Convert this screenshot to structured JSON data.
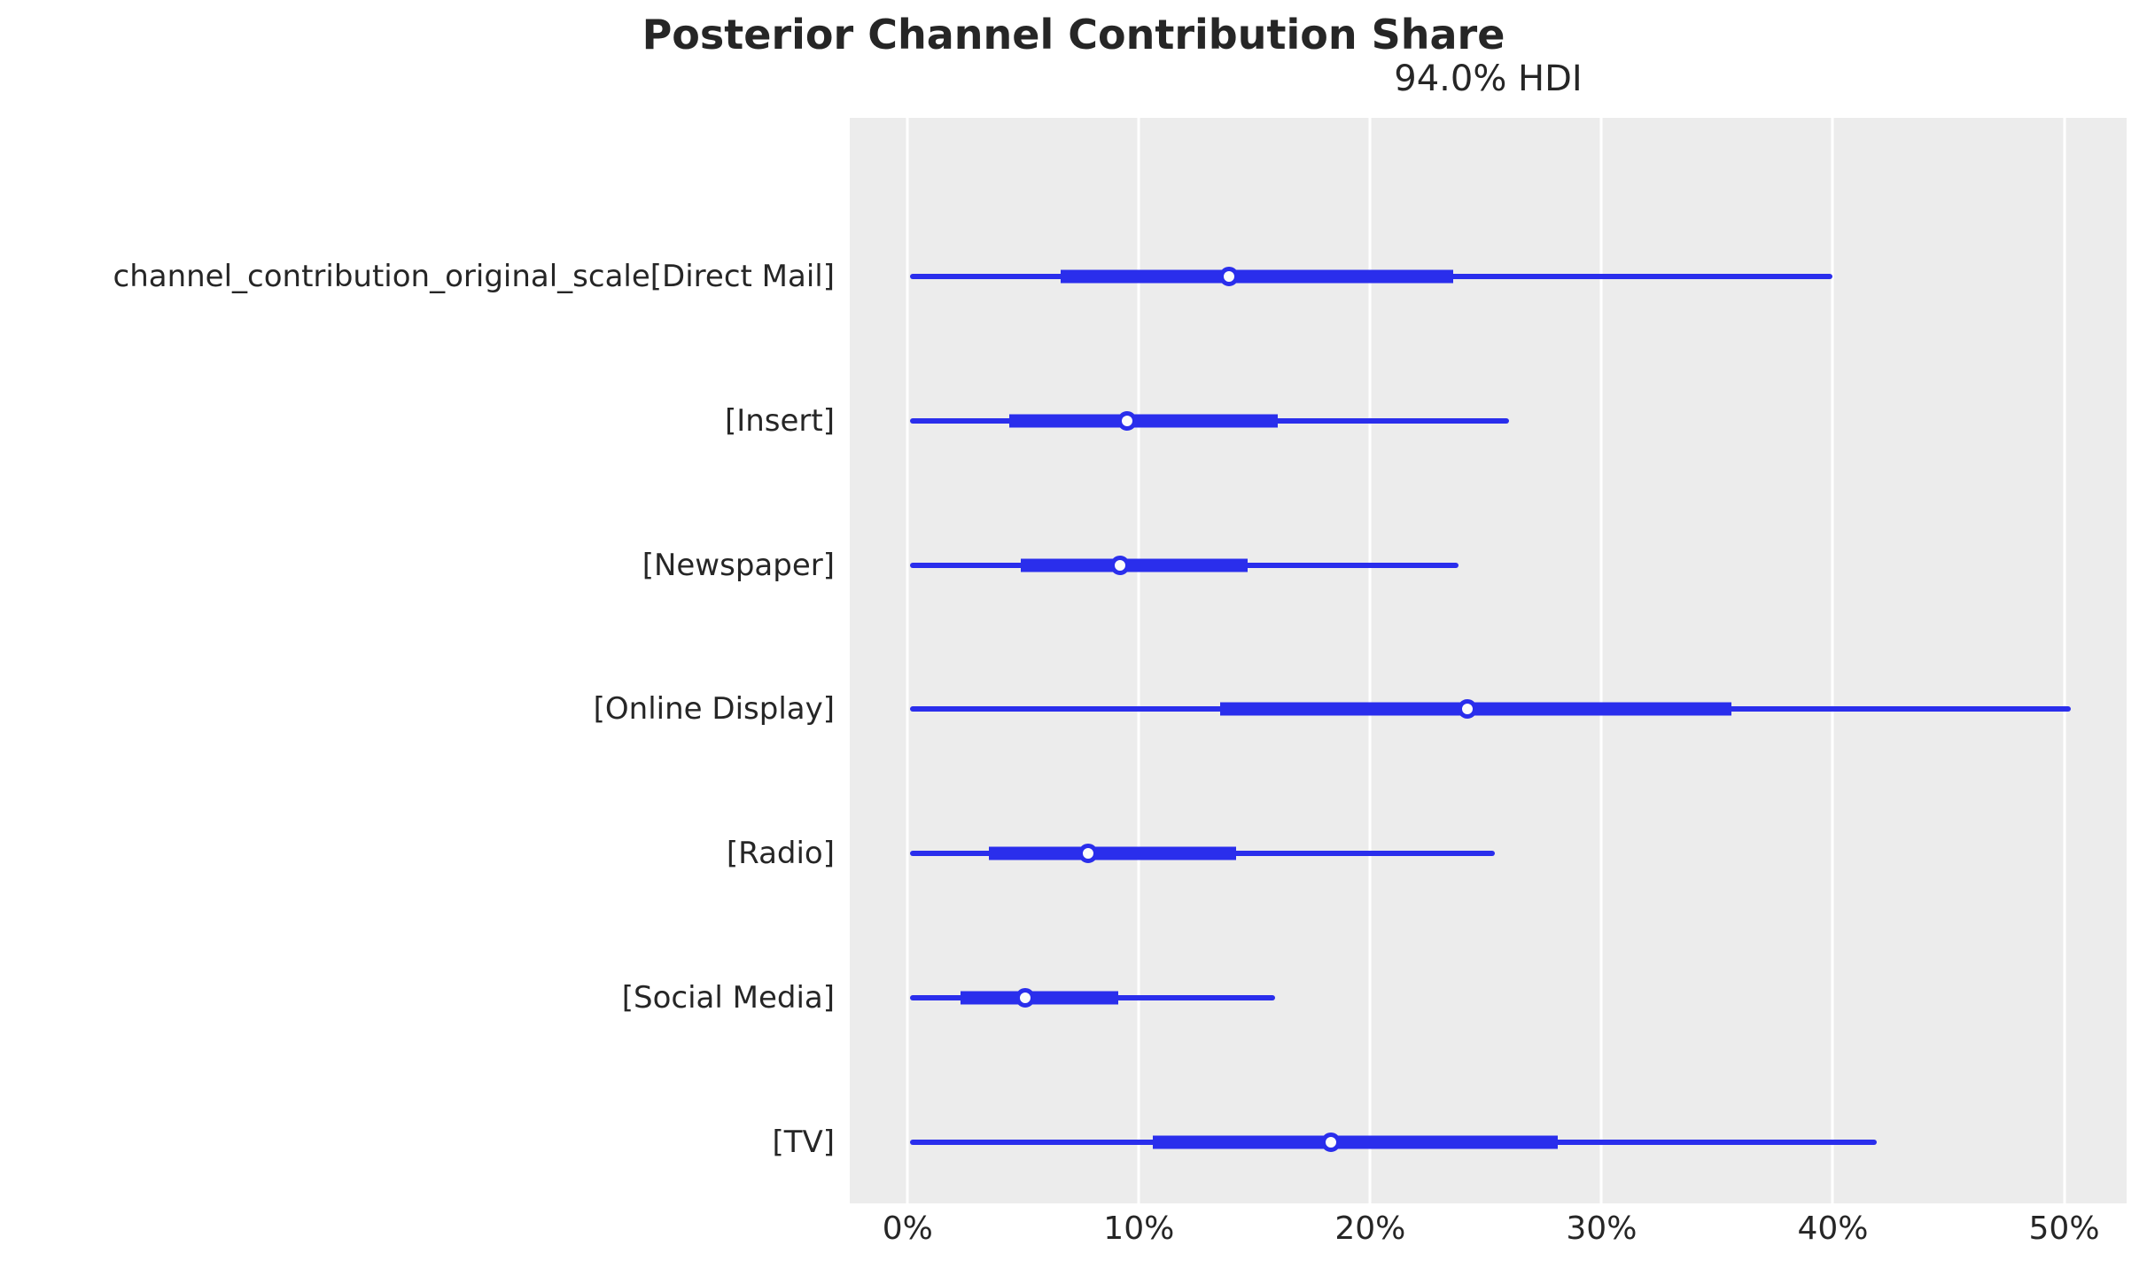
{
  "figure": {
    "title": "Posterior Channel Contribution Share",
    "axes_title": "94.0% HDI"
  },
  "colors": {
    "interval_blue": "#2a2eec",
    "plot_background": "#ececec",
    "figure_background": "#ffffff",
    "gridline": "#ffffff",
    "text": "#262626",
    "marker_fill": "#fcfcfc"
  },
  "chart_data": {
    "type": "forest",
    "title": "Posterior Channel Contribution Share",
    "subtitle": "94.0% HDI",
    "hdi_probability": "94.0%",
    "value_unit": "percent share",
    "xlim": [
      -2.5,
      52.7
    ],
    "grid": "vertical white gridlines on gray panel",
    "legend": "none",
    "x_ticks": [
      {
        "value": 0,
        "label": "0%"
      },
      {
        "value": 10,
        "label": "10%"
      },
      {
        "value": 20,
        "label": "20%"
      },
      {
        "value": 30,
        "label": "30%"
      },
      {
        "value": 40,
        "label": "40%"
      },
      {
        "value": 50,
        "label": "50%"
      }
    ],
    "rows": [
      {
        "label": "channel_contribution_original_scale[Direct Mail]",
        "hdi_lower": 0.1,
        "quartile_lower": 6.6,
        "median": 13.9,
        "quartile_upper": 23.6,
        "hdi_upper": 40.0
      },
      {
        "label": "[Insert]",
        "hdi_lower": 0.1,
        "quartile_lower": 4.4,
        "median": 9.5,
        "quartile_upper": 16.0,
        "hdi_upper": 26.0
      },
      {
        "label": "[Newspaper]",
        "hdi_lower": 0.1,
        "quartile_lower": 4.9,
        "median": 9.2,
        "quartile_upper": 14.7,
        "hdi_upper": 23.8
      },
      {
        "label": "[Online Display]",
        "hdi_lower": 0.1,
        "quartile_lower": 13.5,
        "median": 24.2,
        "quartile_upper": 35.6,
        "hdi_upper": 50.3
      },
      {
        "label": "[Radio]",
        "hdi_lower": 0.1,
        "quartile_lower": 3.5,
        "median": 7.8,
        "quartile_upper": 14.2,
        "hdi_upper": 25.4
      },
      {
        "label": "[Social Media]",
        "hdi_lower": 0.1,
        "quartile_lower": 2.3,
        "median": 5.1,
        "quartile_upper": 9.1,
        "hdi_upper": 15.9
      },
      {
        "label": "[TV]",
        "hdi_lower": 0.1,
        "quartile_lower": 10.6,
        "median": 18.3,
        "quartile_upper": 28.1,
        "hdi_upper": 41.9
      }
    ]
  }
}
